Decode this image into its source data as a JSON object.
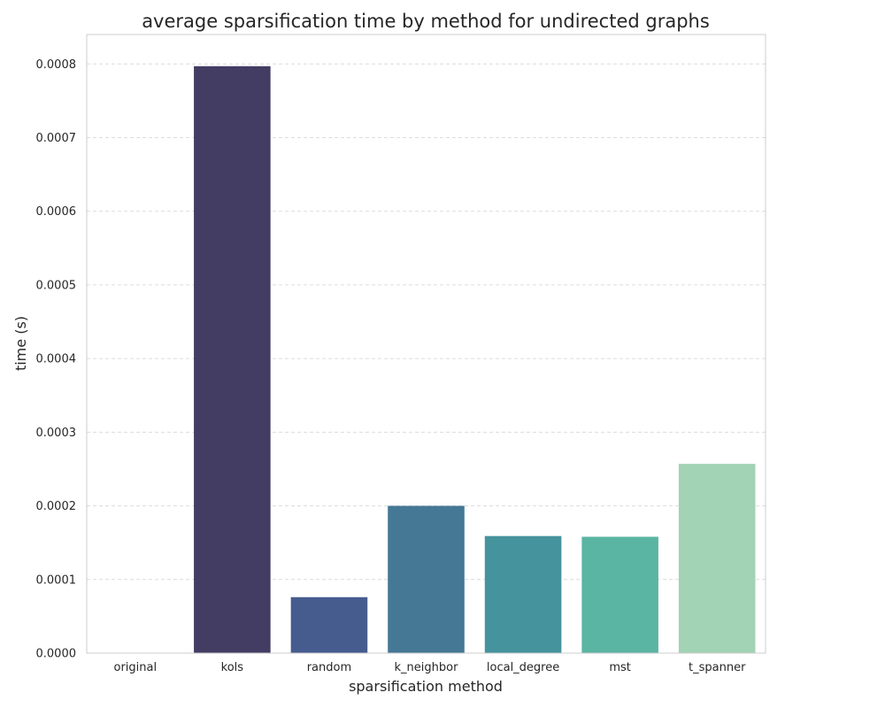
{
  "chart_data": {
    "type": "bar",
    "title": "average sparsification time by method for undirected graphs",
    "xlabel": "sparsification method",
    "ylabel": "time (s)",
    "categories": [
      "original",
      "kols",
      "random",
      "k_neighbor",
      "local_degree",
      "mst",
      "t_spanner"
    ],
    "values": [
      0.0,
      0.000797,
      7.6e-05,
      0.0002,
      0.000159,
      0.000158,
      0.000257
    ],
    "colors": [
      "#3c3a63",
      "#433c63",
      "#465c8f",
      "#447895",
      "#45939d",
      "#5ab5a2",
      "#a2d3b4"
    ],
    "ylim": [
      0,
      0.00084
    ],
    "yticks": [
      0,
      0.0001,
      0.0002,
      0.0003,
      0.0004,
      0.0005,
      0.0006,
      0.0007,
      0.0008
    ],
    "ytick_labels": [
      "0.0000",
      "0.0001",
      "0.0002",
      "0.0003",
      "0.0004",
      "0.0005",
      "0.0006",
      "0.0007",
      "0.0008"
    ],
    "grid": true,
    "grid_axis": "y",
    "grid_style": "dashed"
  }
}
